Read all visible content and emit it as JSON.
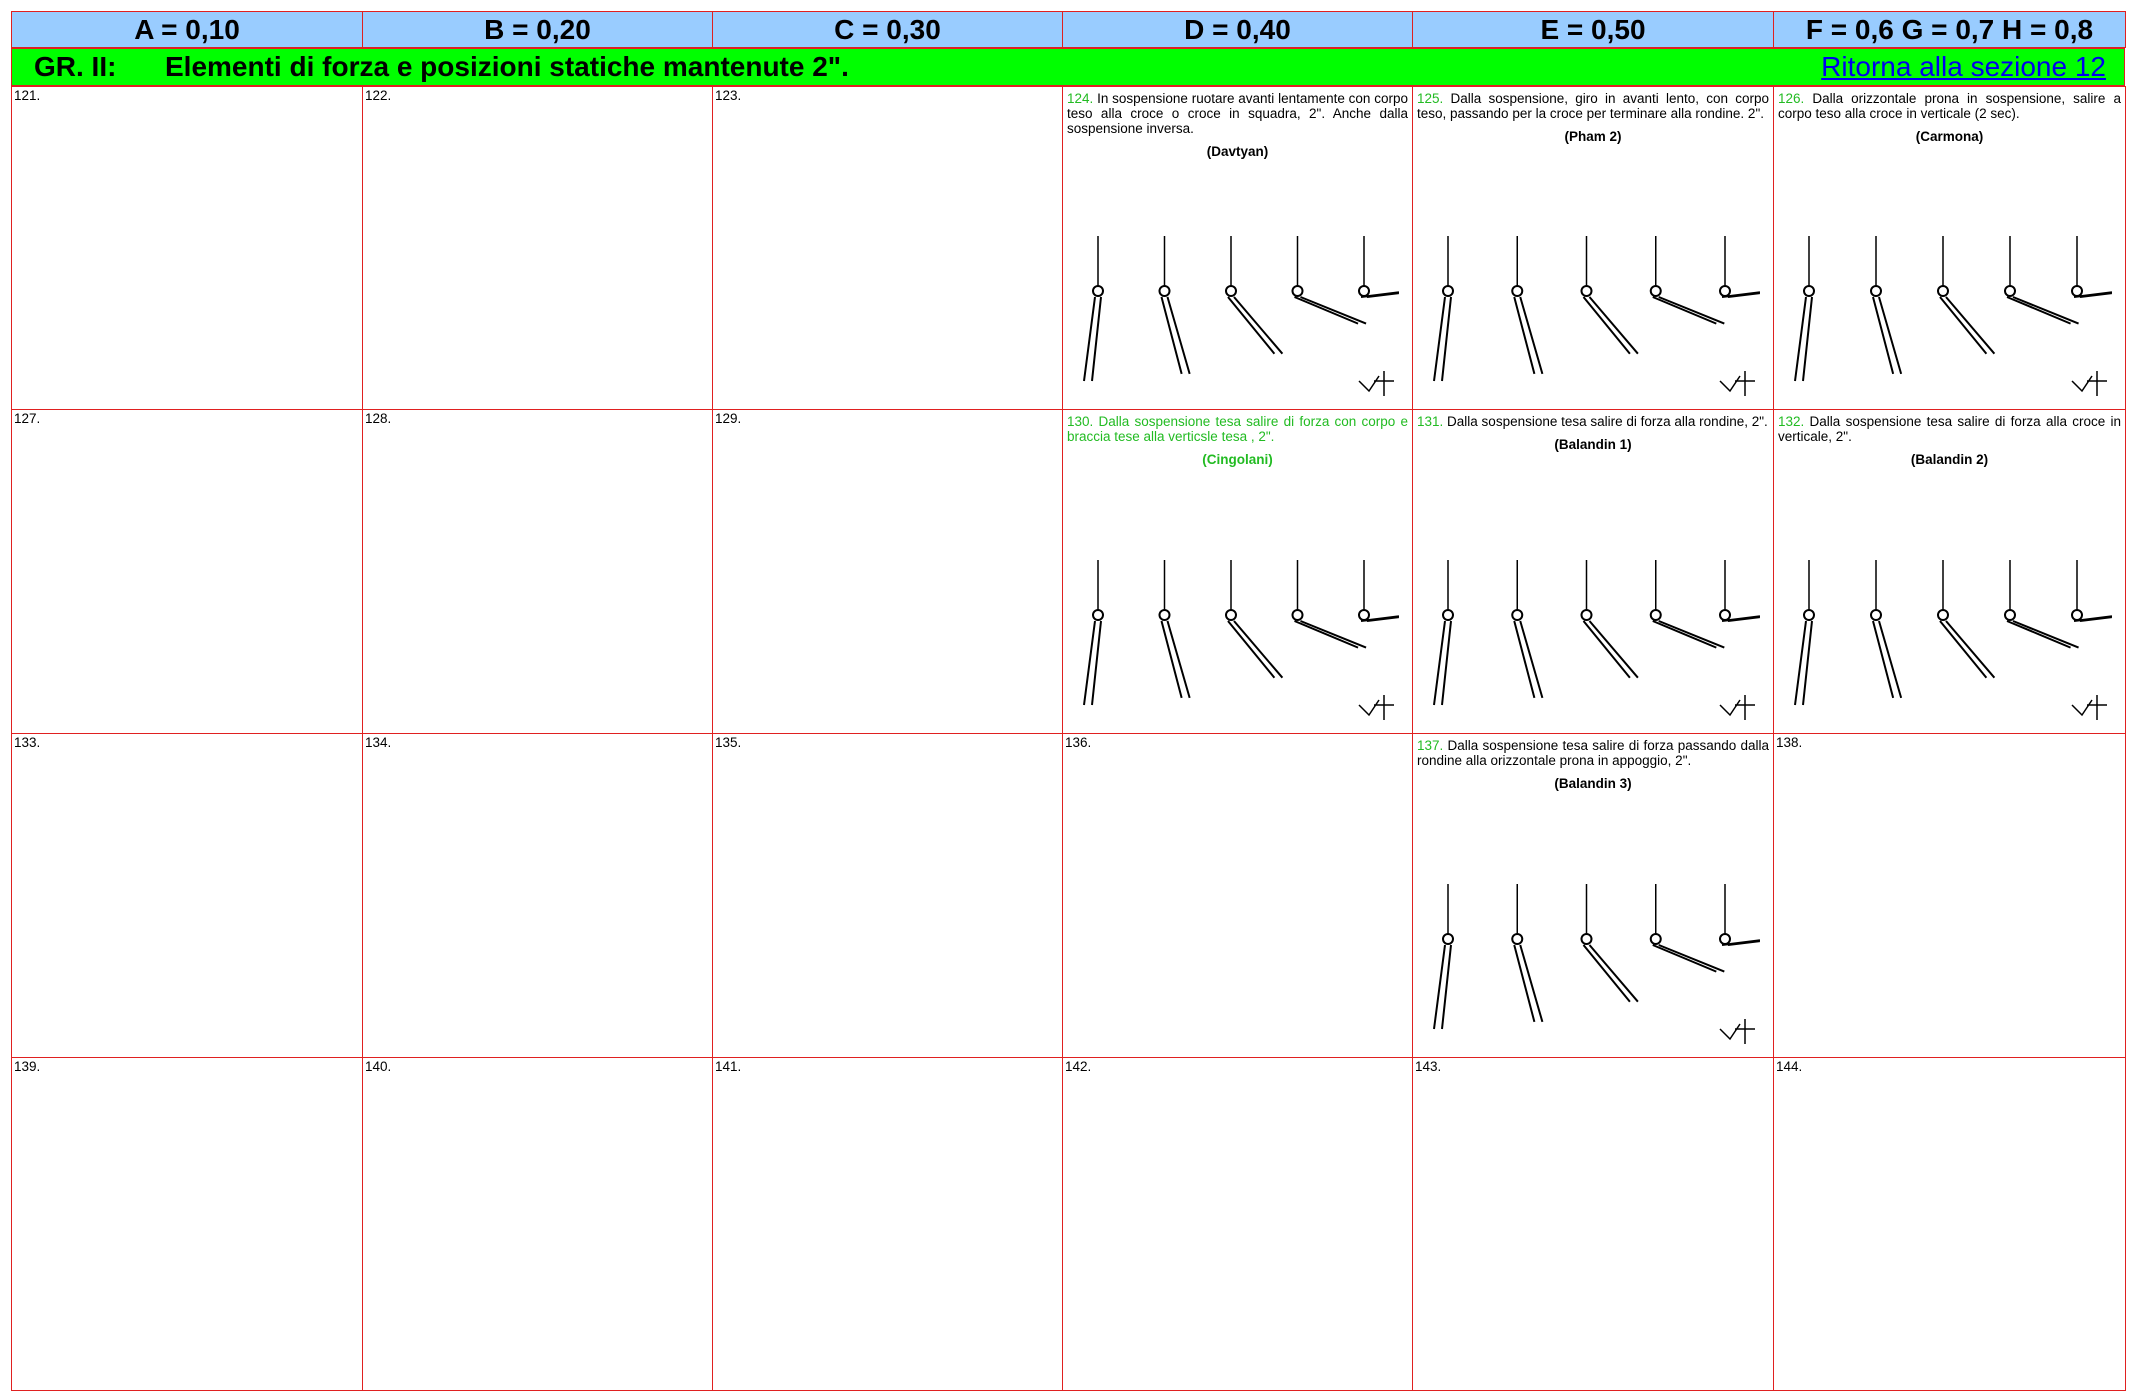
{
  "header": {
    "columns": [
      "A = 0,10",
      "B = 0,20",
      "C = 0,30",
      "D = 0,40",
      "E = 0,50",
      "F = 0,6 G = 0,7 H = 0,8"
    ]
  },
  "group": {
    "label": "GR. II:",
    "title": "Elementi di forza e posizioni statiche mantenute 2\".",
    "link": "Ritorna alla sezione 12"
  },
  "table": {
    "rows": [
      {
        "cells": [
          {
            "number": "121."
          },
          {
            "number": "122."
          },
          {
            "number": "123."
          },
          {
            "number": "124.",
            "text": "In sospensione ruotare avanti lentamente con corpo teso alla croce o croce in squadra, 2\". Anche dalla sospensione inversa.",
            "name": "(Davtyan)"
          },
          {
            "number": "125.",
            "text": "Dalla sospensione, giro in avanti lento, con corpo teso, passando per la croce per terminare alla rondine. 2\".",
            "name": "(Pham 2)"
          },
          {
            "number": "126.",
            "text": "Dalla orizzontale prona in sospensione, salire a corpo teso alla croce in verticale (2 sec).",
            "name": "(Carmona)"
          }
        ]
      },
      {
        "cells": [
          {
            "number": "127."
          },
          {
            "number": "128."
          },
          {
            "number": "129."
          },
          {
            "number": "130.",
            "text": "Dalla sospensione tesa salire di forza con corpo e braccia tese  alla verticsle tesa , 2\".",
            "name": "(Cingolani)"
          },
          {
            "number": "131.",
            "text": "Dalla sospensione tesa salire di forza alla rondine, 2\".",
            "name": "(Balandin 1)"
          },
          {
            "number": "132.",
            "text": "Dalla sospensione tesa salire di forza alla croce in verticale, 2\".",
            "name": "(Balandin 2)"
          }
        ]
      },
      {
        "cells": [
          {
            "number": "133."
          },
          {
            "number": "134."
          },
          {
            "number": "135."
          },
          {
            "number": "136."
          },
          {
            "number": "137.",
            "text": "Dalla sospensione tesa salire di forza passando dalla rondine alla orizzontale prona in appoggio, 2\".",
            "name": "(Balandin 3)"
          },
          {
            "number": "138."
          }
        ]
      },
      {
        "cells": [
          {
            "number": "139."
          },
          {
            "number": "140."
          },
          {
            "number": "141."
          },
          {
            "number": "142."
          },
          {
            "number": "143."
          },
          {
            "number": "144."
          }
        ]
      }
    ]
  }
}
